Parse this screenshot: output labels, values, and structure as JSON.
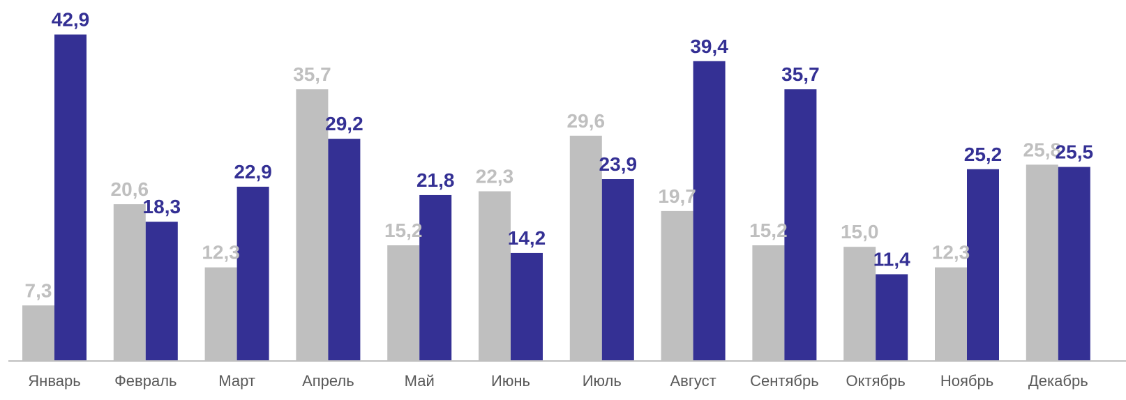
{
  "chart_data": {
    "type": "bar",
    "title": "",
    "xlabel": "",
    "ylabel": "",
    "ylim": [
      0,
      45
    ],
    "grid": false,
    "legend": "none",
    "categories": [
      "Январь",
      "Февраль",
      "Март",
      "Апрель",
      "Май",
      "Июнь",
      "Июль",
      "Август",
      "Сентябрь",
      "Октябрь",
      "Ноябрь",
      "Декабрь"
    ],
    "series": [
      {
        "color": "#bfbfbf",
        "values": [
          7.3,
          20.6,
          12.3,
          35.7,
          15.2,
          22.3,
          29.6,
          19.7,
          15.2,
          15.0,
          12.3,
          25.8
        ],
        "labels": [
          "7,3",
          "20,6",
          "12,3",
          "35,7",
          "15,2",
          "22,3",
          "29,6",
          "19,7",
          "15,2",
          "15,0",
          "12,3",
          "25,8"
        ]
      },
      {
        "color": "#343094",
        "values": [
          42.9,
          18.3,
          22.9,
          29.2,
          21.8,
          14.2,
          23.9,
          39.4,
          35.7,
          11.4,
          25.2,
          25.5
        ],
        "labels": [
          "42,9",
          "18,3",
          "22,9",
          "29,2",
          "21,8",
          "14,2",
          "23,9",
          "39,4",
          "35,7",
          "11,4",
          "25,2",
          "25,5"
        ]
      }
    ],
    "axis_color": "#bfbfbf"
  }
}
